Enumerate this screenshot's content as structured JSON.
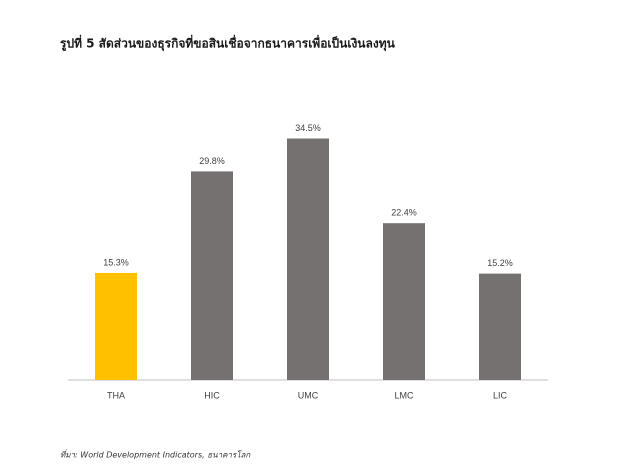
{
  "chart_data": {
    "type": "bar",
    "title": "รูปที่ 5 สัดส่วนของธุรกิจที่ขอสินเชื่อจากธนาคารเพื่อเป็นเงินลงทุน",
    "categories": [
      "THA",
      "HIC",
      "UMC",
      "LMC",
      "LIC"
    ],
    "values": [
      15.3,
      29.8,
      34.5,
      22.4,
      15.2
    ],
    "value_labels": [
      "15.3%",
      "29.8%",
      "34.5%",
      "22.4%",
      "15.2%"
    ],
    "colors": [
      "#ffc000",
      "#767171",
      "#767171",
      "#767171",
      "#767171"
    ],
    "ylim": [
      0,
      40
    ],
    "source": "ที่มา: World Development Indicators, ธนาคารโลก"
  }
}
